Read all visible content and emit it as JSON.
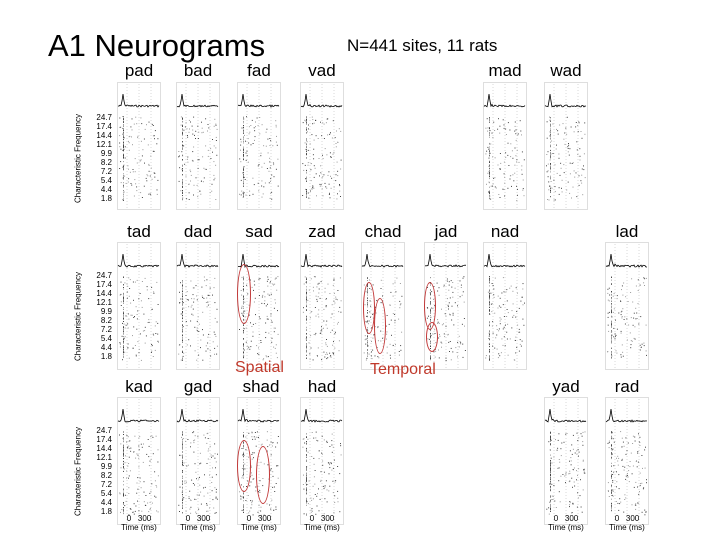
{
  "title": "A1 Neurograms",
  "subtitle": "N=441 sites, 11 rats",
  "y_axis_label": "Characteristic Frequency",
  "cf_ticks": [
    "24.7",
    "17.4",
    "14.4",
    "12.1",
    "9.9",
    "8.2",
    "7.2",
    "5.4",
    "4.4",
    "1.8"
  ],
  "x_axis": {
    "ticks": [
      "0",
      "300"
    ],
    "label": "Time (ms)"
  },
  "rows": [
    {
      "panels": [
        "pad",
        "bad",
        "fad",
        "vad",
        null,
        null,
        "mad",
        "wad"
      ]
    },
    {
      "panels": [
        "tad",
        "dad",
        "sad",
        "zad",
        "chad",
        "jad",
        "nad",
        "lad"
      ]
    },
    {
      "panels": [
        "kad",
        "gad",
        "shad",
        "had",
        null,
        null,
        "yad",
        "rad"
      ]
    }
  ],
  "annotations": {
    "spatial": "Spatial",
    "temporal": "Temporal"
  },
  "colors": {
    "annotation": "#c0392b",
    "trace": "#000000",
    "raster": "#555555"
  }
}
